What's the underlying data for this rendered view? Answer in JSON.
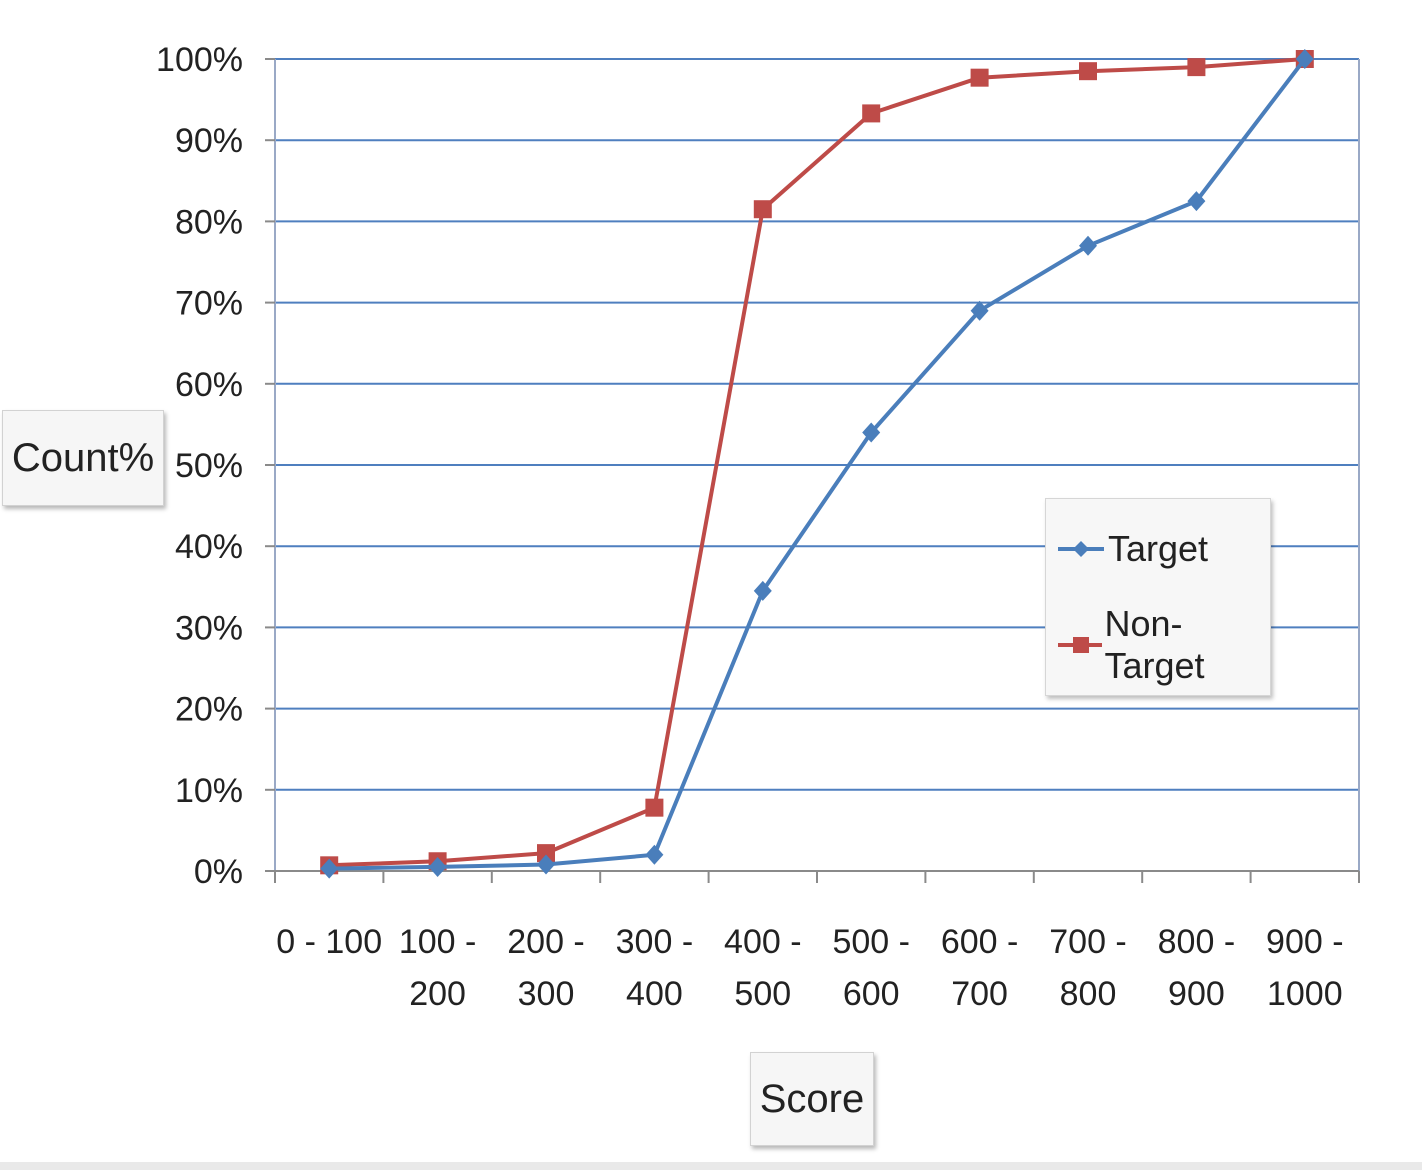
{
  "chart_data": {
    "type": "line",
    "title": "",
    "xlabel": "Score",
    "ylabel": "Count%",
    "categories": [
      [
        "0 - 100"
      ],
      [
        "100 -",
        "200"
      ],
      [
        "200 -",
        "300"
      ],
      [
        "300 -",
        "400"
      ],
      [
        "400 -",
        "500"
      ],
      [
        "500 -",
        "600"
      ],
      [
        "600 -",
        "700"
      ],
      [
        "700 -",
        "800"
      ],
      [
        "800 -",
        "900"
      ],
      [
        "900 -",
        "1000"
      ]
    ],
    "y_ticks": [
      "0%",
      "10%",
      "20%",
      "30%",
      "40%",
      "50%",
      "60%",
      "70%",
      "80%",
      "90%",
      "100%"
    ],
    "ylim": [
      0,
      100
    ],
    "grid": true,
    "legend_position": "right-center",
    "series": [
      {
        "name": "Target",
        "color": "#4a7ebb",
        "marker": "diamond",
        "values": [
          0.3,
          0.5,
          0.8,
          2,
          34.5,
          54,
          69,
          77,
          82.5,
          100
        ]
      },
      {
        "name": "Non-Target",
        "color": "#be4b48",
        "marker": "square",
        "values": [
          0.7,
          1.2,
          2.2,
          7.8,
          81.5,
          93.3,
          97.7,
          98.5,
          99,
          100
        ]
      }
    ]
  }
}
